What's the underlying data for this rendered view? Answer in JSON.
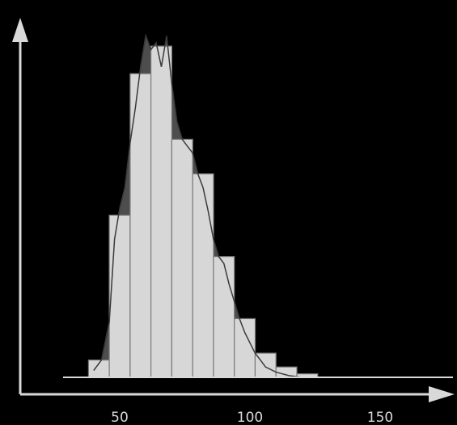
{
  "chart_data": {
    "type": "bar",
    "title": "",
    "xlabel": "",
    "ylabel": "",
    "x_ticks": [
      50,
      100,
      150
    ],
    "xlim": [
      24,
      174
    ],
    "ylim": [
      0,
      100
    ],
    "bins": [
      {
        "start": 38,
        "end": 46,
        "value": 5
      },
      {
        "start": 46,
        "end": 54,
        "value": 47
      },
      {
        "start": 54,
        "end": 62,
        "value": 88
      },
      {
        "start": 62,
        "end": 70,
        "value": 96
      },
      {
        "start": 70,
        "end": 78,
        "value": 69
      },
      {
        "start": 78,
        "end": 86,
        "value": 59
      },
      {
        "start": 86,
        "end": 94,
        "value": 35
      },
      {
        "start": 94,
        "end": 102,
        "value": 17
      },
      {
        "start": 102,
        "end": 110,
        "value": 7
      },
      {
        "start": 110,
        "end": 118,
        "value": 3
      },
      {
        "start": 118,
        "end": 126,
        "value": 1
      }
    ],
    "density_curve": {
      "x": [
        40,
        43,
        46,
        48,
        50,
        52,
        54,
        56,
        58,
        60,
        62,
        64,
        66,
        68,
        70,
        72,
        74,
        76,
        78,
        80,
        82,
        84,
        86,
        88,
        90,
        92,
        94,
        96,
        98,
        100,
        102,
        104,
        106,
        110,
        115,
        120
      ],
      "y": [
        2,
        5,
        16,
        40,
        49,
        55,
        68,
        78,
        90,
        99,
        95,
        97,
        90,
        99,
        85,
        74,
        69,
        67,
        65,
        59,
        55,
        48,
        40,
        35,
        33,
        27,
        22,
        17,
        13,
        10,
        7,
        5,
        3,
        1.5,
        0.5,
        0
      ]
    },
    "grid": false,
    "legend": "none",
    "colors": {
      "background": "#000000",
      "bar_fill": "#d7d7d7",
      "bar_edge": "#7a7a7a",
      "overshoot": "#4d4d4d",
      "curve": "#3a3a3a",
      "axis": "#d9d9d9"
    }
  }
}
